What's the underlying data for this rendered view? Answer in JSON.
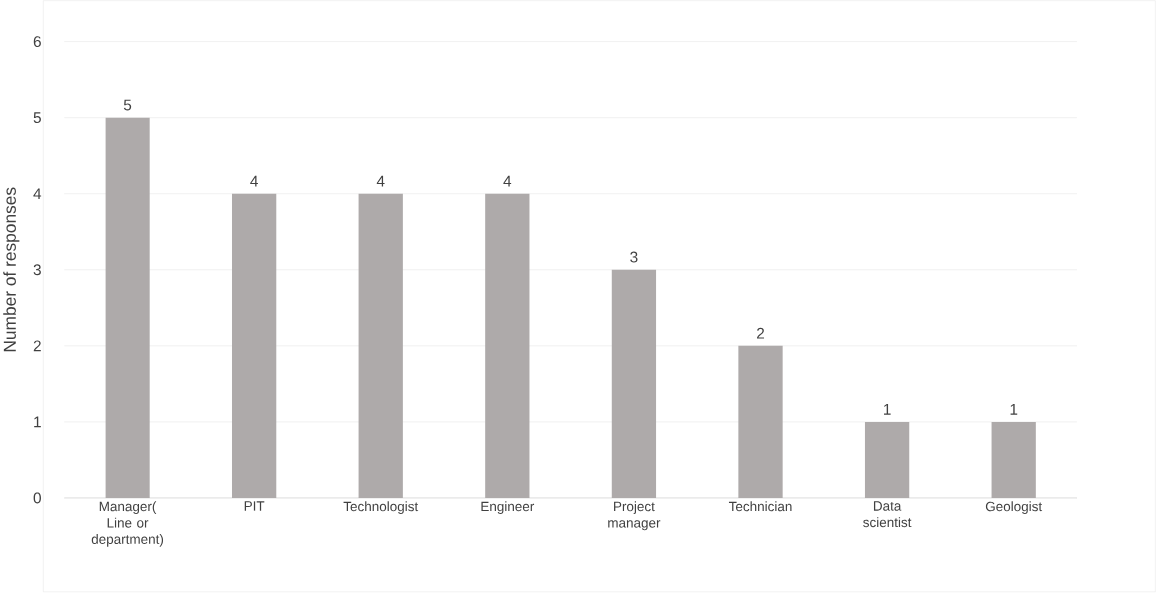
{
  "chart_data": {
    "type": "bar",
    "ylabel": "Number of responses",
    "categories": [
      "Manager( Line or department)",
      "PIT",
      "Technologist",
      "Engineer",
      "Project manager",
      "Technician",
      "Data scientist",
      "Geologist"
    ],
    "values": [
      5,
      4,
      4,
      4,
      3,
      2,
      1,
      1
    ],
    "color": "#aeaaaa",
    "ylim": [
      0,
      6
    ],
    "yticks": [
      0,
      1,
      2,
      3,
      4,
      5,
      6
    ],
    "grid": "y",
    "data_labels": true
  }
}
